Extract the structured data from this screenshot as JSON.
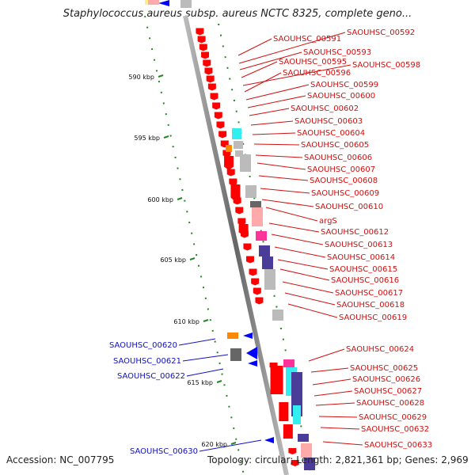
{
  "title": "Staphylococcus aureus subsp. aureus NCTC 8325, complete geno...",
  "footer": {
    "accession": "Accession: NC_007795",
    "topology": "Topology: circular; Length: 2,821,361 bp; Genes: 2,969"
  },
  "ticks": [
    "590 kbp",
    "595 kbp",
    "600 kbp",
    "605 kbp",
    "610 kbp",
    "615 kbp",
    "620 kbp"
  ],
  "gene_labels_right": [
    "SAOUHSC_00591",
    "SAOUHSC_00592",
    "SAOUHSC_00593",
    "SAOUHSC_00595",
    "SAOUHSC_00598",
    "SAOUHSC_00596",
    "SAOUHSC_00599",
    "SAOUHSC_00600",
    "SAOUHSC_00602",
    "SAOUHSC_00603",
    "SAOUHSC_00604",
    "SAOUHSC_00605",
    "SAOUHSC_00606",
    "SAOUHSC_00607",
    "SAOUHSC_00608",
    "SAOUHSC_00609",
    "SAOUHSC_00610",
    "argS",
    "SAOUHSC_00612",
    "SAOUHSC_00613",
    "SAOUHSC_00614",
    "SAOUHSC_00615",
    "SAOUHSC_00616",
    "SAOUHSC_00617",
    "SAOUHSC_00618",
    "SAOUHSC_00619",
    "SAOUHSC_00624",
    "SAOUHSC_00625",
    "SAOUHSC_00626",
    "SAOUHSC_00627",
    "SAOUHSC_00628",
    "SAOUHSC_00629",
    "SAOUHSC_00632",
    "SAOUHSC_00633"
  ],
  "gene_labels_left": [
    "SAOUHSC_00620",
    "SAOUHSC_00621",
    "SAOUHSC_00622",
    "SAOUHSC_00630"
  ],
  "colors": {
    "forward_gene": "#ff0000",
    "reverse_gene": "#0000ff",
    "label_forward": "#d01010",
    "label_reverse": "#1010c0",
    "backbone": "#888888",
    "gc_skew": "#228822",
    "cog_cyan": "#33eeee",
    "cog_grey": "#bbbbbb",
    "cog_darkgrey": "#666666",
    "cog_orange": "#ff8800",
    "cog_pink": "#ff3399",
    "cog_purple": "#4a3d99",
    "cog_lightpink": "#ffaaaa"
  }
}
